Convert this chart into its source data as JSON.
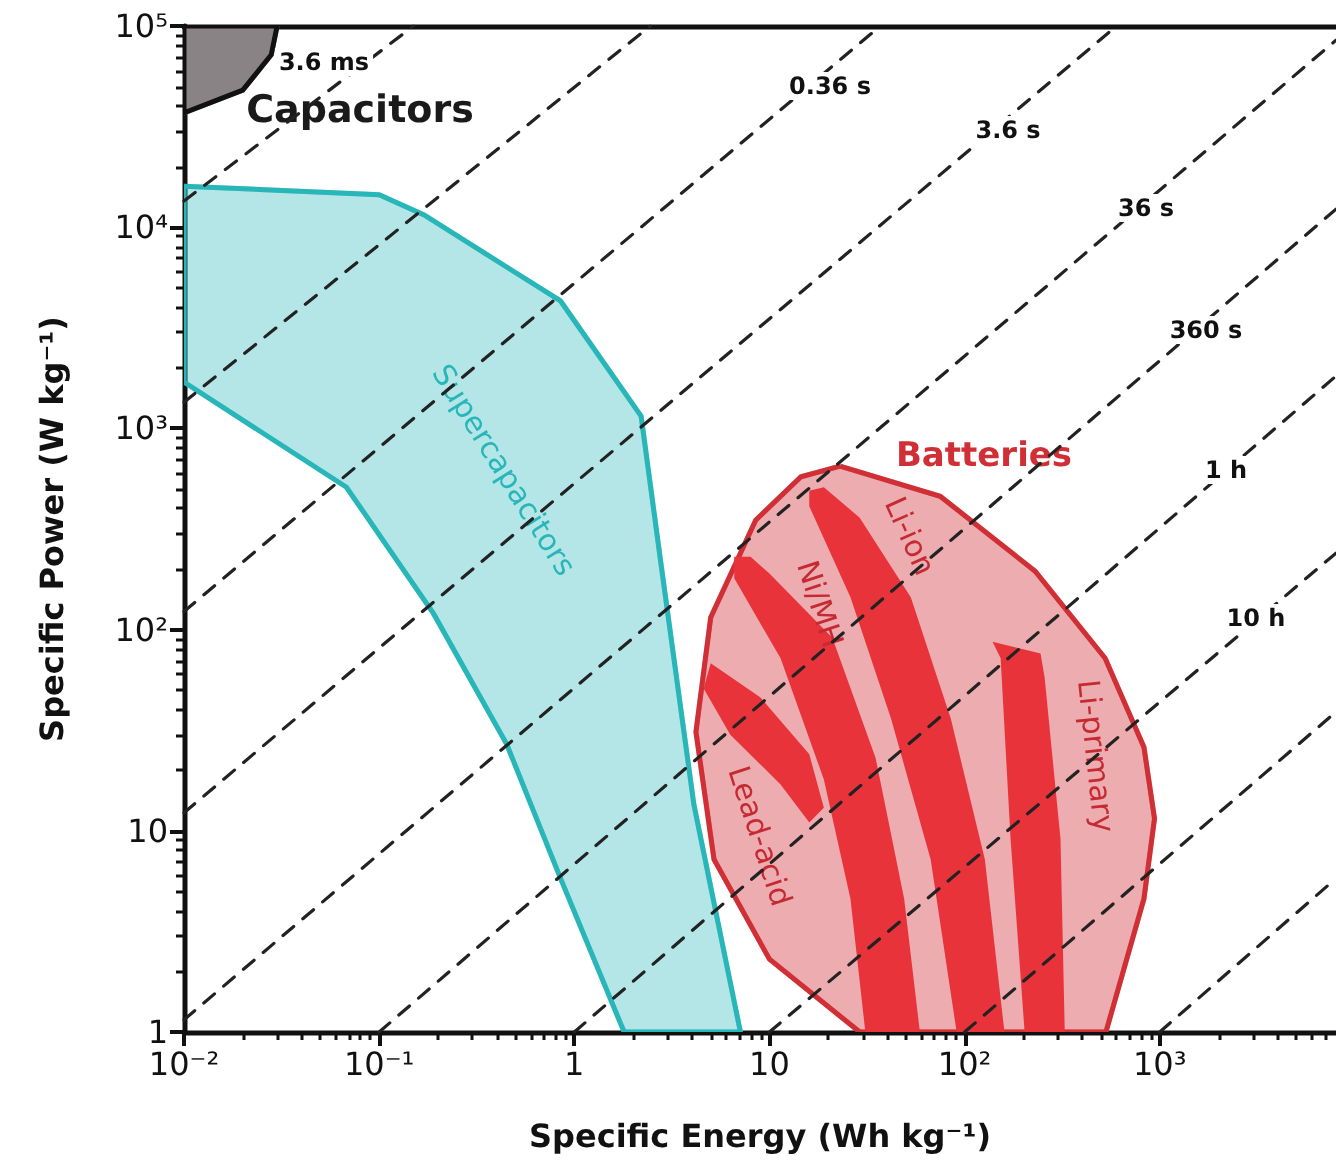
{
  "chart_data": {
    "type": "area",
    "xlabel": "Specific Energy (Wh kg⁻¹)",
    "ylabel": "Specific Power (W kg⁻¹)",
    "log": "xy",
    "grid": false,
    "marker": "none",
    "xlim": [
      0.01,
      8000
    ],
    "ylim": [
      1,
      100000
    ],
    "xticks": [
      {
        "value": 0.01,
        "label": "10⁻²"
      },
      {
        "value": 0.1,
        "label": "10⁻¹"
      },
      1,
      10,
      {
        "value": 100,
        "label": "10²"
      },
      {
        "value": 1000,
        "label": "10³"
      }
    ],
    "yticks": [
      1,
      10,
      {
        "value": 100,
        "label": "10²"
      },
      {
        "value": 1000,
        "label": "10³"
      },
      {
        "value": 10000,
        "label": "10⁴"
      },
      {
        "value": 100000,
        "label": "10⁵"
      }
    ],
    "series": [
      {
        "name": "Capacitors",
        "color": "#8a8385",
        "x": [
          0.01,
          0.01,
          0.02,
          0.028,
          0.03
        ],
        "values": [
          100000,
          37000,
          48000,
          72000,
          100000
        ]
      },
      {
        "name": "Supercapacitors",
        "color": "#29b6b9",
        "x": [
          0.01,
          0.1,
          0.17,
          0.85,
          2.2,
          2.75,
          4.1,
          7.1,
          1.8,
          0.85,
          0.45,
          0.19,
          0.068,
          0.01
        ],
        "values": [
          16000,
          14500,
          11500,
          4300,
          1150,
          230,
          13.5,
          1,
          1,
          5.8,
          27,
          120,
          510,
          1700
        ]
      },
      {
        "name": "Batteries",
        "color": "#d12f36",
        "x": [
          23,
          75,
          230,
          525,
          830,
          940,
          830,
          530,
          29,
          10,
          5.2,
          4.2,
          5,
          8.5,
          14.5
        ],
        "values": [
          650,
          460,
          195,
          72,
          26,
          11.5,
          4.6,
          1,
          1,
          2.3,
          7.2,
          31,
          115,
          350,
          575
        ]
      },
      {
        "name": "Lead-acid",
        "color": "#e8333b",
        "x": [
          4.6,
          5,
          9,
          16,
          19,
          16,
          11.4,
          6.3
        ],
        "values": [
          51,
          68,
          46,
          24,
          13,
          11,
          17,
          30
        ]
      },
      {
        "name": "Ni/MH",
        "color": "#e8333b",
        "x": [
          6.6,
          11.4,
          19,
          26,
          31,
          59,
          49,
          35,
          21,
          10,
          8,
          6.6
        ],
        "values": [
          180,
          72,
          18,
          4.6,
          1,
          1,
          4.6,
          23,
          91,
          190,
          230,
          230
        ]
      },
      {
        "name": "Li-ion",
        "color": "#e8333b",
        "x": [
          16,
          26,
          42,
          67,
          91,
          160,
          127,
          85,
          53,
          29,
          19,
          16
        ],
        "values": [
          410,
          145,
          36,
          7.2,
          1,
          1,
          7.2,
          36,
          145,
          360,
          510,
          490
        ]
      },
      {
        "name": "Li-primary",
        "color": "#e8333b",
        "x": [
          139,
          153,
          172,
          203,
          326,
          310,
          257,
          245
        ],
        "values": [
          87,
          72,
          9.1,
          1,
          1,
          9.1,
          58,
          76
        ]
      },
      {
        "type": "line",
        "color": "#222222",
        "line_style": "dashed",
        "x": [
          0.01,
          0.15
        ],
        "values": [
          13500,
          100000
        ]
      },
      {
        "type": "line",
        "color": "#222222",
        "line_style": "dashed",
        "x": [
          0.01,
          2.45
        ],
        "values": [
          1350,
          100000
        ]
      },
      {
        "type": "line",
        "color": "#222222",
        "line_style": "dashed",
        "x": [
          0.01,
          37
        ],
        "values": [
          123,
          100000
        ]
      },
      {
        "type": "line",
        "color": "#222222",
        "line_style": "dashed",
        "x": [
          0.01,
          600
        ],
        "values": [
          12.3,
          100000
        ]
      },
      {
        "type": "line",
        "color": "#222222",
        "line_style": "dashed",
        "x": [
          0.01,
          8000
        ],
        "values": [
          1.15,
          85000
        ]
      },
      {
        "type": "line",
        "color": "#222222",
        "line_style": "dashed",
        "x": [
          0.1,
          8000
        ],
        "values": [
          1,
          12300
        ]
      },
      {
        "type": "line",
        "color": "#222222",
        "line_style": "dashed",
        "x": [
          1,
          8000
        ],
        "values": [
          1,
          1820
        ]
      },
      {
        "type": "line",
        "color": "#222222",
        "line_style": "dashed",
        "x": [
          10,
          8000
        ],
        "values": [
          1,
          240
        ]
      },
      {
        "type": "line",
        "color": "#222222",
        "line_style": "dashed",
        "x": [
          100,
          8000
        ],
        "values": [
          1,
          39
        ]
      },
      {
        "type": "line",
        "color": "#222222",
        "line_style": "dashed",
        "x": [
          1000,
          8000
        ],
        "values": [
          1,
          5.8
        ]
      }
    ],
    "annotations": [
      "3.6 ms",
      "0.36 s",
      "3.6 s",
      "36 s",
      "360 s",
      "1 h",
      "10 h"
    ]
  }
}
